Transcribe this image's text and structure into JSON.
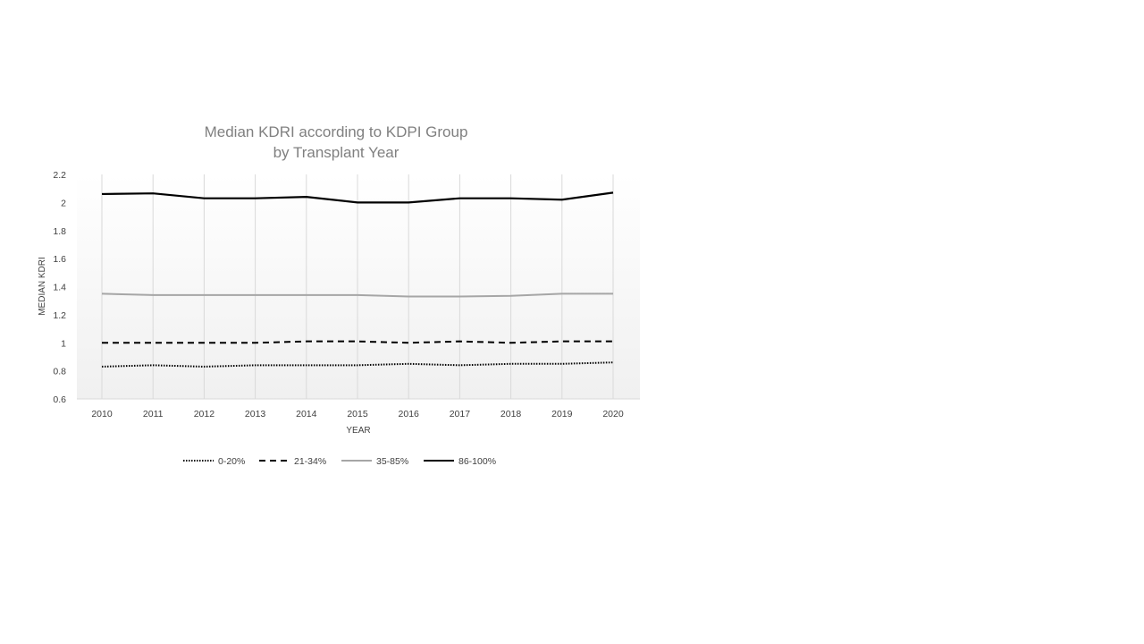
{
  "chart_data": {
    "type": "line",
    "title": [
      "Median KDRI according to KDPI Group",
      "by Transplant Year"
    ],
    "xlabel": "YEAR",
    "ylabel": "MEDIAN KDRI",
    "ylim": [
      0.6,
      2.2
    ],
    "yticks": [
      "0.6",
      "0.8",
      "1",
      "1.2",
      "1.4",
      "1.6",
      "1.8",
      "2",
      "2.2"
    ],
    "grid": "vertical",
    "legend": "bottom",
    "categories": [
      "2010",
      "2011",
      "2012",
      "2013",
      "2014",
      "2015",
      "2016",
      "2017",
      "2018",
      "2019",
      "2020"
    ],
    "series": [
      {
        "name": "0-20%",
        "style": "dotted",
        "color": "#000000",
        "values": [
          0.83,
          0.84,
          0.83,
          0.84,
          0.84,
          0.84,
          0.85,
          0.84,
          0.85,
          0.85,
          0.86
        ]
      },
      {
        "name": "21-34%",
        "style": "dashed",
        "color": "#000000",
        "values": [
          1.0,
          1.0,
          1.0,
          1.0,
          1.01,
          1.01,
          1.0,
          1.01,
          1.0,
          1.01,
          1.01
        ]
      },
      {
        "name": "35-85%",
        "style": "solid",
        "color": "#a6a6a6",
        "values": [
          1.35,
          1.34,
          1.34,
          1.34,
          1.34,
          1.34,
          1.33,
          1.33,
          1.335,
          1.35,
          1.35
        ]
      },
      {
        "name": "86-100%",
        "style": "solid",
        "color": "#000000",
        "values": [
          2.06,
          2.065,
          2.03,
          2.03,
          2.04,
          2.0,
          2.0,
          2.03,
          2.03,
          2.02,
          2.07
        ]
      }
    ]
  }
}
